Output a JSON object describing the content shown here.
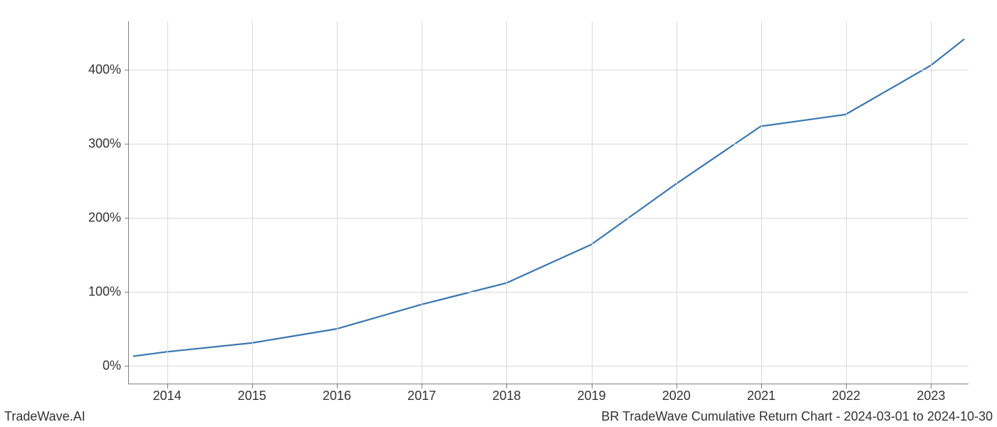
{
  "chart": {
    "type": "line",
    "background_color": "#ffffff",
    "grid_color": "#d9d9d9",
    "axis_color": "#808080",
    "line_color": "#3a76af",
    "line_width": 2.2,
    "tick_font_size": 18,
    "tick_color": "#333333",
    "x": {
      "ticks": [
        2014,
        2015,
        2016,
        2017,
        2018,
        2019,
        2020,
        2021,
        2022,
        2023
      ],
      "min": 2013.55,
      "max": 2023.45
    },
    "y": {
      "ticks": [
        0,
        100,
        200,
        300,
        400
      ],
      "tick_suffix": "%",
      "min": -25,
      "max": 465
    },
    "series": [
      {
        "x": 2013.6,
        "y": 12
      },
      {
        "x": 2014.0,
        "y": 18
      },
      {
        "x": 2015.0,
        "y": 30
      },
      {
        "x": 2016.0,
        "y": 49
      },
      {
        "x": 2017.0,
        "y": 82
      },
      {
        "x": 2018.0,
        "y": 111
      },
      {
        "x": 2019.0,
        "y": 163
      },
      {
        "x": 2020.0,
        "y": 245
      },
      {
        "x": 2021.0,
        "y": 323
      },
      {
        "x": 2022.0,
        "y": 339
      },
      {
        "x": 2023.0,
        "y": 405
      },
      {
        "x": 2023.4,
        "y": 441
      }
    ]
  },
  "footer": {
    "left": "TradeWave.AI",
    "right": "BR TradeWave Cumulative Return Chart - 2024-03-01 to 2024-10-30"
  }
}
